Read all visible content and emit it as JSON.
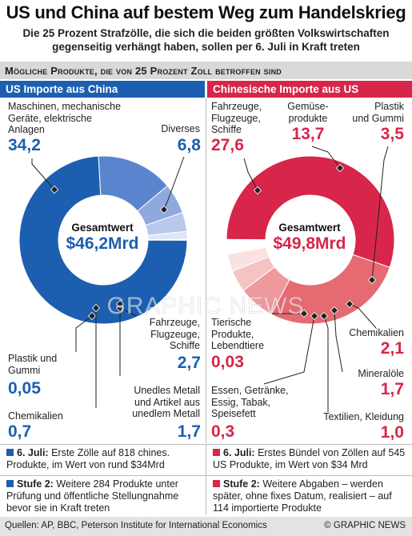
{
  "header": {
    "title": "US und China auf bestem Weg zum Handelskrieg",
    "subtitle_line1": "Die 25 Prozent Strafzölle, die sich die beiden größten Volkswirtschaften",
    "subtitle_line2": "gegenseitig verhängt haben, sollen per 6. Juli in Kraft treten"
  },
  "section_title": "Mögliche Produkte, die von 25 Prozent Zoll betroffen sind",
  "colors": {
    "us_main": "#1c5fb0",
    "us_light": [
      "#5b84cf",
      "#8fa9de",
      "#b9c9ec",
      "#dde5f6",
      "#ffffff"
    ],
    "cn_main": "#d7264a",
    "cn_light": [
      "#e56a72",
      "#ee999c",
      "#f5c3c4",
      "#fbe2e2",
      "#ffffff"
    ]
  },
  "chart_data": [
    {
      "type": "pie",
      "title": "US Importe aus China",
      "center_label": "Gesamtwert",
      "center_value": "$46,2Mrd",
      "categories": [
        "Maschinen, mechanische Geräte, elektrische Anlagen",
        "Diverses",
        "Fahrzeuge, Flugzeuge, Schiffe",
        "Unedles Metall und Artikel aus unedlem Metall",
        "Chemikalien",
        "Plastik und Gummi"
      ],
      "values": [
        34.2,
        6.8,
        2.7,
        1.7,
        0.7,
        0.05
      ],
      "value_labels": [
        "34,2",
        "6,8",
        "2,7",
        "1,7",
        "0,7",
        "0,05"
      ],
      "label_lines": [
        [
          "Maschinen, mechanische",
          "Geräte, elektrische",
          "Anlagen"
        ],
        [
          "Diverses"
        ],
        [
          "Fahrzeuge,",
          "Flugzeuge,",
          "Schiffe"
        ],
        [
          "Unedles Metall",
          "und Artikel aus",
          "unedlem Metall"
        ],
        [
          "Chemikalien"
        ],
        [
          "Plastik und",
          "Gummi"
        ]
      ]
    },
    {
      "type": "pie",
      "title": "Chinesische Importe aus US",
      "center_label": "Gesamtwert",
      "center_value": "$49,8Mrd",
      "categories": [
        "Fahrzeuge, Flugzeuge, Schiffe",
        "Gemüseprodukte",
        "Plastik und Gummi",
        "Chemikalien",
        "Mineralöle",
        "Textilien, Kleidung",
        "Essen, Getränke, Essig, Tabak, Speisefett",
        "Tierische Produkte, Lebendtiere"
      ],
      "values": [
        27.6,
        13.7,
        3.5,
        2.1,
        1.7,
        1.0,
        0.3,
        0.03
      ],
      "value_labels": [
        "27,6",
        "13,7",
        "3,5",
        "2,1",
        "1,7",
        "1,0",
        "0,3",
        "0,03"
      ],
      "label_lines": [
        [
          "Fahrzeuge,",
          "Flugzeuge,",
          "Schiffe"
        ],
        [
          "Gemüse-",
          "produkte"
        ],
        [
          "Plastik",
          "und Gummi"
        ],
        [
          "Chemikalien"
        ],
        [
          "Mineralöle"
        ],
        [
          "Textilien, Kleidung"
        ],
        [
          "Essen, Getränke,",
          "Essig, Tabak,",
          "Speisefett"
        ],
        [
          "Tierische",
          "Produkte,",
          "Lebendtiere"
        ]
      ]
    }
  ],
  "notes": {
    "us": [
      {
        "label": "6. Juli:",
        "text": "Erste Zölle auf 818 chines. Produkte, im Wert von rund $34Mrd"
      },
      {
        "label": "Stufe 2:",
        "text": "Weitere 284 Produkte unter Prüfung und öffentliche Stellungnahme bevor sie in Kraft treten"
      }
    ],
    "cn": [
      {
        "label": "6. Juli:",
        "text": "Erstes Bündel von Zöllen auf 545 US Produkte, im Wert von $34 Mrd"
      },
      {
        "label": "Stufe 2:",
        "text": "Weitere Abgaben – werden später, ohne fixes Datum, realisiert – auf 114 importierte Produkte"
      }
    ]
  },
  "footer": {
    "source": "Quellen: AP, BBC, Peterson Institute for International Economics",
    "credit": "© GRAPHIC NEWS"
  },
  "watermark": "GRAPHIC NEWS"
}
